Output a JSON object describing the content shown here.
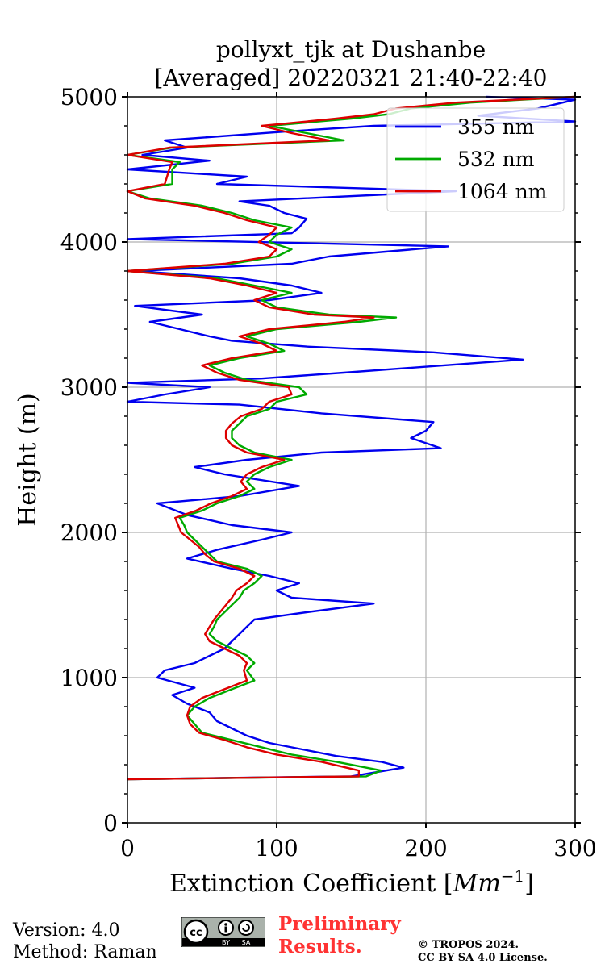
{
  "title_line1": "pollyxt_tjk at Dushanbe",
  "title_line2": "[Averaged] 20220321 21:40-22:40",
  "footer": {
    "version": "Version: 4.0",
    "method": "Method: Raman",
    "preliminary_line1": "Preliminary",
    "preliminary_line2": "Results.",
    "copyright_line1": "© TROPOS 2024.",
    "copyright_line2": "CC BY SA 4.0 License.",
    "license_badge": {
      "cc": "cc",
      "by": "BY",
      "sa": "SA"
    }
  },
  "chart_data": {
    "type": "line",
    "title": "pollyxt_tjk at Dushanbe [Averaged] 20220321 21:40-22:40",
    "xlabel": "Extinction Coefficient [Mm⁻¹]",
    "xlabel_text": "Extinction Coefficient [",
    "xlabel_unit": "Mm",
    "xlabel_exp": "−1",
    "xlabel_close": "]",
    "ylabel": "Height (m)",
    "xlim": [
      0,
      300
    ],
    "ylim": [
      0,
      5000
    ],
    "xticks": [
      0,
      100,
      200,
      300
    ],
    "yticks": [
      0,
      1000,
      2000,
      3000,
      4000,
      5000
    ],
    "x_tick_labels": [
      "0",
      "100",
      "200",
      "300"
    ],
    "y_tick_labels": [
      "0",
      "1000",
      "2000",
      "3000",
      "4000",
      "5000"
    ],
    "grid": true,
    "legend_position": "top-right",
    "series": [
      {
        "name": "355 nm",
        "color": "#0000ee",
        "points": [
          [
            0,
            300
          ],
          [
            150,
            320
          ],
          [
            185,
            380
          ],
          [
            170,
            420
          ],
          [
            140,
            460
          ],
          [
            120,
            500
          ],
          [
            95,
            550
          ],
          [
            80,
            600
          ],
          [
            70,
            650
          ],
          [
            60,
            700
          ],
          [
            55,
            760
          ],
          [
            40,
            820
          ],
          [
            30,
            880
          ],
          [
            45,
            930
          ],
          [
            20,
            1000
          ],
          [
            25,
            1050
          ],
          [
            45,
            1100
          ],
          [
            55,
            1150
          ],
          [
            65,
            1200
          ],
          [
            70,
            1250
          ],
          [
            75,
            1300
          ],
          [
            80,
            1350
          ],
          [
            85,
            1400
          ],
          [
            120,
            1450
          ],
          [
            165,
            1510
          ],
          [
            110,
            1550
          ],
          [
            100,
            1600
          ],
          [
            115,
            1650
          ],
          [
            95,
            1700
          ],
          [
            70,
            1750
          ],
          [
            40,
            1820
          ],
          [
            60,
            1880
          ],
          [
            90,
            1950
          ],
          [
            110,
            2000
          ],
          [
            70,
            2050
          ],
          [
            40,
            2120
          ],
          [
            20,
            2200
          ],
          [
            75,
            2250
          ],
          [
            115,
            2320
          ],
          [
            65,
            2400
          ],
          [
            45,
            2450
          ],
          [
            80,
            2500
          ],
          [
            130,
            2550
          ],
          [
            210,
            2580
          ],
          [
            190,
            2650
          ],
          [
            200,
            2700
          ],
          [
            205,
            2760
          ],
          [
            130,
            2820
          ],
          [
            75,
            2880
          ],
          [
            0,
            2900
          ],
          [
            25,
            2950
          ],
          [
            55,
            3000
          ],
          [
            0,
            3030
          ],
          [
            90,
            3060
          ],
          [
            145,
            3100
          ],
          [
            265,
            3190
          ],
          [
            205,
            3240
          ],
          [
            120,
            3280
          ],
          [
            70,
            3320
          ],
          [
            55,
            3350
          ],
          [
            35,
            3400
          ],
          [
            15,
            3450
          ],
          [
            50,
            3500
          ],
          [
            5,
            3560
          ],
          [
            95,
            3600
          ],
          [
            130,
            3650
          ],
          [
            110,
            3700
          ],
          [
            75,
            3750
          ],
          [
            5,
            3800
          ],
          [
            110,
            3850
          ],
          [
            135,
            3900
          ],
          [
            215,
            3970
          ],
          [
            0,
            4020
          ],
          [
            110,
            4060
          ],
          [
            115,
            4100
          ],
          [
            120,
            4160
          ],
          [
            105,
            4200
          ],
          [
            95,
            4250
          ],
          [
            75,
            4280
          ],
          [
            220,
            4350
          ],
          [
            60,
            4400
          ],
          [
            80,
            4450
          ],
          [
            0,
            4500
          ],
          [
            55,
            4560
          ],
          [
            10,
            4600
          ],
          [
            40,
            4650
          ],
          [
            25,
            4700
          ],
          [
            105,
            4760
          ],
          [
            165,
            4800
          ],
          [
            300,
            4830
          ],
          [
            235,
            4870
          ],
          [
            275,
            4920
          ],
          [
            300,
            4980
          ],
          [
            240,
            5000
          ]
        ]
      },
      {
        "name": "532 nm",
        "color": "#00aa00",
        "points": [
          [
            0,
            300
          ],
          [
            160,
            320
          ],
          [
            170,
            360
          ],
          [
            140,
            420
          ],
          [
            110,
            470
          ],
          [
            90,
            520
          ],
          [
            70,
            570
          ],
          [
            50,
            620
          ],
          [
            45,
            680
          ],
          [
            40,
            740
          ],
          [
            45,
            800
          ],
          [
            55,
            860
          ],
          [
            70,
            920
          ],
          [
            85,
            980
          ],
          [
            80,
            1050
          ],
          [
            85,
            1100
          ],
          [
            80,
            1150
          ],
          [
            70,
            1200
          ],
          [
            60,
            1250
          ],
          [
            55,
            1300
          ],
          [
            58,
            1350
          ],
          [
            60,
            1400
          ],
          [
            65,
            1450
          ],
          [
            70,
            1500
          ],
          [
            75,
            1550
          ],
          [
            78,
            1600
          ],
          [
            85,
            1650
          ],
          [
            90,
            1700
          ],
          [
            80,
            1750
          ],
          [
            60,
            1800
          ],
          [
            55,
            1850
          ],
          [
            50,
            1900
          ],
          [
            45,
            1950
          ],
          [
            40,
            2000
          ],
          [
            38,
            2050
          ],
          [
            35,
            2100
          ],
          [
            50,
            2150
          ],
          [
            60,
            2200
          ],
          [
            75,
            2250
          ],
          [
            85,
            2300
          ],
          [
            80,
            2350
          ],
          [
            85,
            2400
          ],
          [
            95,
            2450
          ],
          [
            110,
            2500
          ],
          [
            85,
            2550
          ],
          [
            75,
            2600
          ],
          [
            70,
            2650
          ],
          [
            70,
            2700
          ],
          [
            75,
            2750
          ],
          [
            80,
            2800
          ],
          [
            95,
            2850
          ],
          [
            100,
            2900
          ],
          [
            120,
            2950
          ],
          [
            115,
            3000
          ],
          [
            80,
            3050
          ],
          [
            65,
            3100
          ],
          [
            55,
            3150
          ],
          [
            75,
            3200
          ],
          [
            105,
            3250
          ],
          [
            95,
            3300
          ],
          [
            80,
            3350
          ],
          [
            100,
            3400
          ],
          [
            155,
            3450
          ],
          [
            180,
            3480
          ],
          [
            135,
            3500
          ],
          [
            100,
            3550
          ],
          [
            90,
            3600
          ],
          [
            110,
            3650
          ],
          [
            85,
            3700
          ],
          [
            60,
            3750
          ],
          [
            0,
            3800
          ],
          [
            70,
            3850
          ],
          [
            100,
            3900
          ],
          [
            110,
            3950
          ],
          [
            95,
            4000
          ],
          [
            100,
            4050
          ],
          [
            110,
            4100
          ],
          [
            85,
            4150
          ],
          [
            70,
            4200
          ],
          [
            50,
            4250
          ],
          [
            15,
            4300
          ],
          [
            0,
            4350
          ],
          [
            30,
            4400
          ],
          [
            30,
            4500
          ],
          [
            35,
            4550
          ],
          [
            0,
            4600
          ],
          [
            30,
            4650
          ],
          [
            145,
            4700
          ],
          [
            120,
            4750
          ],
          [
            95,
            4800
          ],
          [
            150,
            4850
          ],
          [
            175,
            4880
          ],
          [
            190,
            4920
          ],
          [
            230,
            4960
          ],
          [
            300,
            5000
          ]
        ]
      },
      {
        "name": "1064 nm",
        "color": "#dd0000",
        "points": [
          [
            0,
            300
          ],
          [
            155,
            320
          ],
          [
            155,
            360
          ],
          [
            130,
            420
          ],
          [
            100,
            470
          ],
          [
            80,
            520
          ],
          [
            65,
            570
          ],
          [
            48,
            620
          ],
          [
            42,
            680
          ],
          [
            40,
            740
          ],
          [
            42,
            800
          ],
          [
            50,
            860
          ],
          [
            65,
            920
          ],
          [
            80,
            980
          ],
          [
            78,
            1050
          ],
          [
            80,
            1100
          ],
          [
            75,
            1150
          ],
          [
            65,
            1200
          ],
          [
            55,
            1250
          ],
          [
            52,
            1300
          ],
          [
            55,
            1350
          ],
          [
            58,
            1400
          ],
          [
            62,
            1450
          ],
          [
            66,
            1500
          ],
          [
            70,
            1550
          ],
          [
            73,
            1600
          ],
          [
            80,
            1650
          ],
          [
            85,
            1700
          ],
          [
            75,
            1750
          ],
          [
            58,
            1800
          ],
          [
            52,
            1850
          ],
          [
            48,
            1900
          ],
          [
            42,
            1950
          ],
          [
            36,
            2000
          ],
          [
            34,
            2050
          ],
          [
            32,
            2100
          ],
          [
            46,
            2150
          ],
          [
            56,
            2200
          ],
          [
            70,
            2250
          ],
          [
            80,
            2300
          ],
          [
            76,
            2350
          ],
          [
            80,
            2400
          ],
          [
            90,
            2450
          ],
          [
            105,
            2500
          ],
          [
            80,
            2550
          ],
          [
            70,
            2600
          ],
          [
            66,
            2650
          ],
          [
            66,
            2700
          ],
          [
            70,
            2750
          ],
          [
            76,
            2800
          ],
          [
            90,
            2850
          ],
          [
            95,
            2900
          ],
          [
            110,
            2950
          ],
          [
            108,
            3000
          ],
          [
            75,
            3050
          ],
          [
            60,
            3100
          ],
          [
            50,
            3150
          ],
          [
            70,
            3200
          ],
          [
            100,
            3250
          ],
          [
            90,
            3300
          ],
          [
            75,
            3350
          ],
          [
            95,
            3400
          ],
          [
            145,
            3450
          ],
          [
            165,
            3480
          ],
          [
            125,
            3500
          ],
          [
            95,
            3550
          ],
          [
            85,
            3600
          ],
          [
            100,
            3650
          ],
          [
            80,
            3700
          ],
          [
            55,
            3750
          ],
          [
            0,
            3800
          ],
          [
            65,
            3850
          ],
          [
            95,
            3900
          ],
          [
            100,
            3950
          ],
          [
            88,
            4000
          ],
          [
            95,
            4050
          ],
          [
            100,
            4100
          ],
          [
            80,
            4150
          ],
          [
            65,
            4200
          ],
          [
            45,
            4250
          ],
          [
            12,
            4300
          ],
          [
            0,
            4350
          ],
          [
            25,
            4400
          ],
          [
            28,
            4500
          ],
          [
            30,
            4550
          ],
          [
            0,
            4600
          ],
          [
            28,
            4650
          ],
          [
            135,
            4700
          ],
          [
            110,
            4750
          ],
          [
            90,
            4800
          ],
          [
            140,
            4850
          ],
          [
            165,
            4880
          ],
          [
            180,
            4920
          ],
          [
            220,
            4960
          ],
          [
            300,
            5000
          ]
        ]
      }
    ]
  }
}
